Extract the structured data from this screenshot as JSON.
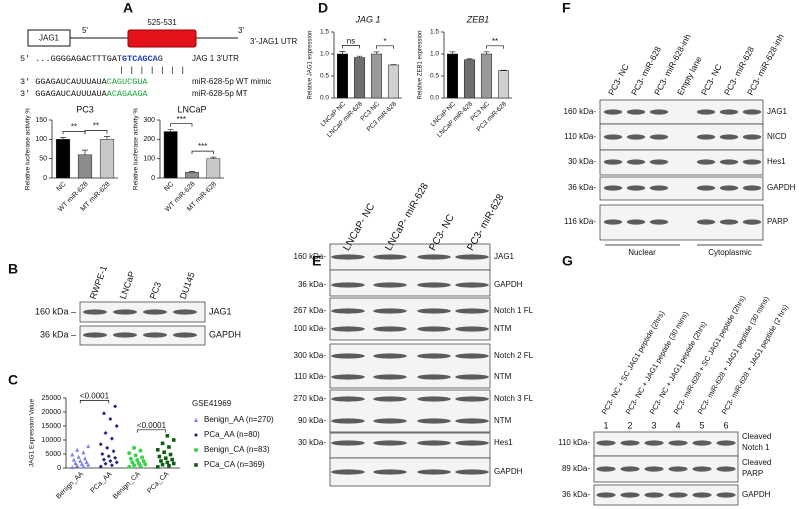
{
  "panel_labels": [
    "A",
    "B",
    "C",
    "D",
    "E",
    "F",
    "G"
  ],
  "diagram_a": {
    "gene": "JAG1",
    "five_prime": "5'",
    "three_prime": "3'",
    "site": "525-531",
    "utr": "3'-JAG1 UTR",
    "seq_utr": {
      "prefix": "5' ...GGGGAGACTTTGAT",
      "seed": "GTCAGCA",
      "suffix": "G",
      "label": "JAG 1 3'UTR"
    },
    "pairing": "| | | | | | |",
    "seq_wt": {
      "prefix": "3'  GGAGAUCAUUUAUA",
      "seed": "CAGUCGUA",
      "label": "miR-628-5p WT mimic"
    },
    "seq_mt": {
      "prefix": "3'  GGAGAUCAUUUAUA",
      "seed": "ACAGAAGA",
      "label": "miR-628-5p MT"
    }
  },
  "chart_data": [
    {
      "type": "bar",
      "title": "PC3",
      "ylabel": "Relative luciferase activity %",
      "categories": [
        "NC",
        "WT miR-628",
        "MT miR-628"
      ],
      "values": [
        100,
        60,
        100
      ],
      "errors": [
        5,
        12,
        7
      ],
      "colors": [
        "#000000",
        "#8c8c8c",
        "#c8c8c8"
      ],
      "ylim": [
        0,
        150
      ],
      "yticks": [
        0,
        50,
        100,
        150
      ],
      "annotations": [
        {
          "text": "**",
          "between": [
            0,
            1
          ]
        },
        {
          "text": "**",
          "between": [
            1,
            2
          ]
        }
      ]
    },
    {
      "type": "bar",
      "title": "LNCaP",
      "ylabel": "Relative luciferase activity %",
      "categories": [
        "NC",
        "WT miR-628",
        "MT miR-628"
      ],
      "values": [
        240,
        30,
        100
      ],
      "errors": [
        10,
        3,
        8
      ],
      "colors": [
        "#000000",
        "#8c8c8c",
        "#c8c8c8"
      ],
      "ylim": [
        0,
        300
      ],
      "yticks": [
        0,
        100,
        200,
        300
      ],
      "annotations": [
        {
          "text": "***",
          "between": [
            0,
            1
          ]
        },
        {
          "text": "***",
          "between": [
            1,
            2
          ]
        }
      ]
    },
    {
      "type": "scatter",
      "ylabel": "JAG1 Expression Value",
      "categories": [
        "Benign_AA",
        "PCa_AA",
        "Benign_CA",
        "PCa_CA"
      ],
      "legend_title": "GSE41969",
      "series": [
        {
          "name": "Benign_AA (n=270)",
          "color": "#7b7bf0",
          "marker": "triangle",
          "values": [
            300,
            600,
            900,
            1200,
            1500,
            1800,
            2200,
            2600,
            3000,
            3500,
            4000,
            4800,
            5600,
            6500,
            7800
          ]
        },
        {
          "name": "PCa_AA (n=80)",
          "color": "#23238e",
          "marker": "diamond",
          "values": [
            500,
            1000,
            1500,
            2000,
            2500,
            3000,
            3600,
            4200,
            5000,
            6000,
            7200,
            8500,
            10500,
            12500,
            15000,
            17500,
            19500,
            22000
          ]
        },
        {
          "name": "Benign_CA (n=83)",
          "color": "#3ed24a",
          "marker": "circle",
          "values": [
            400,
            700,
            1000,
            1300,
            1600,
            2000,
            2400,
            2800,
            3300,
            3800,
            4500,
            5300,
            6200,
            7200
          ]
        },
        {
          "name": "PCa_CA (n=369)",
          "color": "#0b5d12",
          "marker": "square",
          "values": [
            400,
            800,
            1200,
            1600,
            2000,
            2500,
            3000,
            3500,
            4100,
            4800,
            5600,
            6500,
            7500,
            8800,
            10000,
            11500
          ]
        }
      ],
      "ylim": [
        0,
        25000
      ],
      "yticks": [
        0,
        5000,
        10000,
        15000,
        20000,
        25000
      ],
      "annotations": [
        {
          "text": "<0.0001",
          "between": [
            0,
            1
          ]
        },
        {
          "text": "<0.0001",
          "between": [
            2,
            3
          ]
        }
      ]
    },
    {
      "type": "bar",
      "title": "JAG 1",
      "ylabel": "Relative JAG1 expression",
      "categories": [
        "LNCaP NC",
        "LNCaP miR-628",
        "PC3 NC",
        "PC3 miR-628"
      ],
      "values": [
        1.0,
        0.92,
        1.0,
        0.75
      ],
      "errors": [
        0.06,
        0.03,
        0.05,
        0.01
      ],
      "colors": [
        "#000000",
        "#6e6e6e",
        "#9a9a9a",
        "#d0d0d0"
      ],
      "ylim": [
        0,
        1.5
      ],
      "yticks": [
        {
          "value": 0,
          "label": "0.0"
        },
        0.5,
        {
          "value": 1,
          "label": "1.0"
        },
        1.5
      ],
      "annotations": [
        {
          "text": "ns",
          "between": [
            0,
            1
          ]
        },
        {
          "text": "*",
          "between": [
            2,
            3
          ]
        }
      ]
    },
    {
      "type": "bar",
      "title": "ZEB1",
      "ylabel": "Relative ZEB1 expression",
      "categories": [
        "LNCaP NC",
        "LNCaP miR-628",
        "PC3 NC",
        "PC3 miR-628"
      ],
      "values": [
        1.0,
        0.87,
        1.0,
        0.62
      ],
      "errors": [
        0.05,
        0.02,
        0.05,
        0.01
      ],
      "colors": [
        "#000000",
        "#6e6e6e",
        "#9a9a9a",
        "#d0d0d0"
      ],
      "ylim": [
        0,
        1.5
      ],
      "yticks": [
        {
          "value": 0,
          "label": "0.0"
        },
        0.5,
        {
          "value": 1,
          "label": "1.0"
        },
        1.5
      ],
      "annotations": [
        {
          "text": "**",
          "between": [
            2,
            3
          ]
        }
      ]
    }
  ],
  "blot_b": {
    "lanes": [
      "RWPE-1",
      "LNCaP",
      "PC3",
      "DU145"
    ],
    "rows": [
      {
        "kda": "160 kDa –",
        "protein": "JAG1"
      },
      {
        "kda": "36 kDa –",
        "protein": "GAPDH"
      }
    ]
  },
  "blot_e": {
    "lanes": [
      "LNCaP- NC",
      "LNCaP- miR-628",
      "PC3- NC",
      "PC3- miR-628"
    ],
    "rows": [
      {
        "kda": "160 kDa-",
        "protein": "JAG1"
      },
      {
        "kda": "36  kDa-",
        "protein": "GAPDH"
      },
      {
        "kda": "267 kDa-",
        "protein": "Notch 1 FL"
      },
      {
        "kda": "100 kDa-",
        "protein": "NTM"
      },
      {
        "kda": "300 kDa-",
        "protein": "Notch 2 FL"
      },
      {
        "kda": "110 kDa-",
        "protein": "NTM"
      },
      {
        "kda": "270 kDa-",
        "protein": "Notch 3 FL"
      },
      {
        "kda": "90  kDa-",
        "protein": "NTM"
      },
      {
        "kda": "30  kDa-",
        "protein": "Hes1"
      },
      {
        "protein": "GAPDH"
      }
    ]
  },
  "blot_f": {
    "lanes": [
      "PC3- NC",
      "PC3- miR-628",
      "PC3- miR-628-inh",
      "Empty lane",
      "PC3- NC",
      "PC3- miR-628",
      "PC3- miR-628-inh"
    ],
    "rows": [
      {
        "kda": "160 kDa-",
        "protein": "JAG1"
      },
      {
        "kda": "110 kDa-",
        "protein": "NICD"
      },
      {
        "kda": "30 kDa-",
        "protein": "Hes1"
      },
      {
        "kda": "36  kDa-",
        "protein": "GAPDH"
      },
      {
        "kda": "116  kDa-",
        "protein": "PARP"
      }
    ],
    "groups": [
      "Nuclear",
      "Cytoplasmic"
    ]
  },
  "blot_g": {
    "lanes": [
      "PC3- NC + SC JAG1 peptide (2hrs)",
      "PC3- NC + JAG1 peptide (30 mins)",
      "PC3- NC + JAG1 peptide (2hrs)",
      "PC3- miR-628 + SC JAG1 peptide (2hrs)",
      "PC3- miR-628 + JAG1 peptide (30 mins)",
      "PC3- miR-628 + JAG1 peptide (2 hrs)"
    ],
    "lane_numbers": [
      1,
      2,
      3,
      4,
      5,
      6
    ],
    "rows": [
      {
        "kda": "110 kDa-",
        "protein": [
          "Cleaved",
          "Notch 1"
        ]
      },
      {
        "kda": "89 kDa-",
        "protein": [
          "Cleaved",
          "PARP"
        ]
      },
      {
        "kda": "36  kDa-",
        "protein": "GAPDH"
      }
    ]
  }
}
